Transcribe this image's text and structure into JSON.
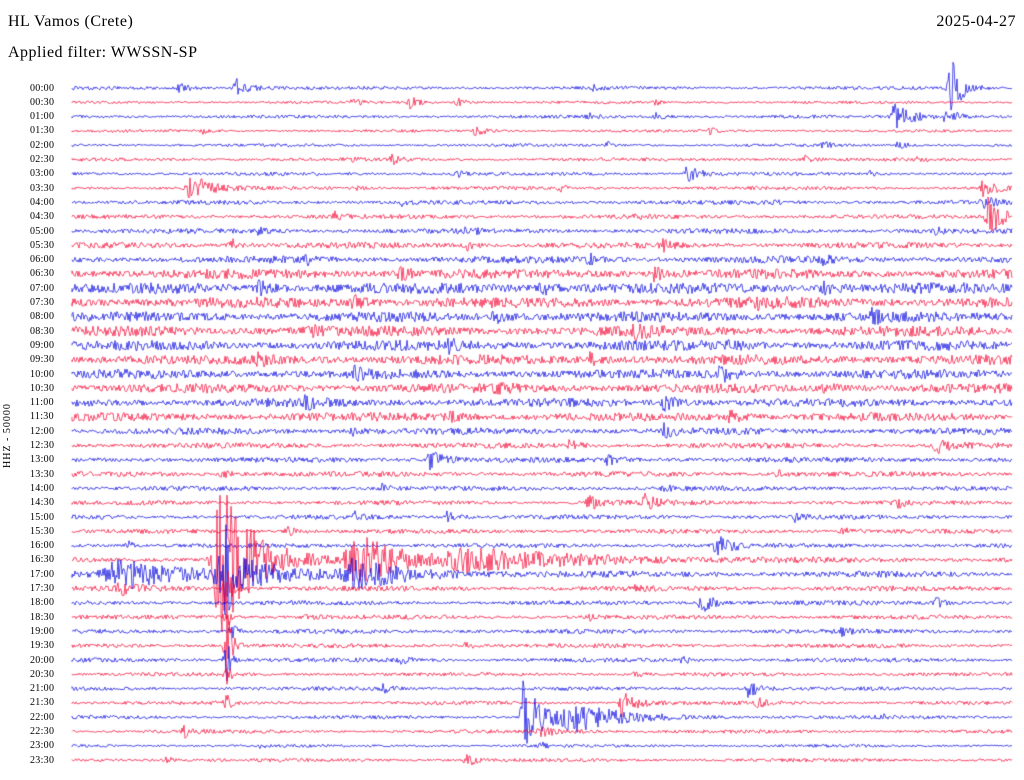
{
  "header": {
    "station": "HL Vamos (Crete)",
    "date": "2025-04-27",
    "filter_label": "Applied filter: WWSSN-SP",
    "channel_scale": "HHZ - 50000"
  },
  "colors": {
    "blue": "#0000e0",
    "red": "#f40030",
    "background": "#ffffff",
    "text": "#000000"
  },
  "chart_data": {
    "type": "seismogram",
    "title": "HL Vamos (Crete)",
    "date": "2025-04-27",
    "filter": "WWSSN-SP",
    "channel_scale": "HHZ - 50000",
    "minutes_per_line": 30,
    "legend_position": "none",
    "grid": false,
    "note": "Helicorder drum plot, 48 half-hour traces alternating blue/red. events = [x_fraction_of_line, amplitude_px, decay_px].",
    "rows": [
      {
        "time": "00:00",
        "color": "blue",
        "noise": 1.8,
        "events": [
          [
            0.115,
            5,
            10
          ],
          [
            0.175,
            9,
            14
          ],
          [
            0.555,
            3,
            6
          ],
          [
            0.935,
            34,
            10
          ]
        ]
      },
      {
        "time": "00:30",
        "color": "red",
        "noise": 1.5,
        "events": [
          [
            0.3,
            4,
            7
          ],
          [
            0.36,
            6,
            8
          ],
          [
            0.41,
            5,
            8
          ],
          [
            0.62,
            3,
            6
          ]
        ]
      },
      {
        "time": "01:00",
        "color": "blue",
        "noise": 1.8,
        "events": [
          [
            0.55,
            3,
            6
          ],
          [
            0.62,
            4,
            8
          ],
          [
            0.875,
            13,
            18
          ],
          [
            0.93,
            9,
            10
          ]
        ]
      },
      {
        "time": "01:30",
        "color": "red",
        "noise": 1.5,
        "events": [
          [
            0.14,
            3,
            5
          ],
          [
            0.43,
            6,
            8
          ],
          [
            0.68,
            4,
            6
          ]
        ]
      },
      {
        "time": "02:00",
        "color": "blue",
        "noise": 1.6,
        "events": [
          [
            0.57,
            3,
            5
          ],
          [
            0.8,
            4,
            6
          ],
          [
            0.88,
            5,
            8
          ]
        ]
      },
      {
        "time": "02:30",
        "color": "red",
        "noise": 1.9,
        "events": [
          [
            0.29,
            5,
            7
          ],
          [
            0.34,
            6,
            8
          ],
          [
            0.78,
            4,
            6
          ],
          [
            0.9,
            3,
            5
          ]
        ]
      },
      {
        "time": "03:00",
        "color": "blue",
        "noise": 1.9,
        "events": [
          [
            0.41,
            4,
            6
          ],
          [
            0.655,
            9,
            12
          ],
          [
            0.85,
            3,
            5
          ]
        ]
      },
      {
        "time": "03:30",
        "color": "red",
        "noise": 2.0,
        "events": [
          [
            0.125,
            17,
            16
          ],
          [
            0.3,
            4,
            6
          ],
          [
            0.52,
            3,
            5
          ],
          [
            0.97,
            9,
            12
          ]
        ]
      },
      {
        "time": "04:00",
        "color": "blue",
        "noise": 2.3,
        "events": [
          [
            0.35,
            4,
            6
          ],
          [
            0.75,
            3,
            5
          ],
          [
            0.97,
            6,
            10
          ]
        ]
      },
      {
        "time": "04:30",
        "color": "red",
        "noise": 2.3,
        "events": [
          [
            0.28,
            5,
            8
          ],
          [
            0.6,
            4,
            6
          ],
          [
            0.975,
            21,
            14
          ]
        ]
      },
      {
        "time": "05:00",
        "color": "blue",
        "noise": 2.8,
        "events": [
          [
            0.2,
            4,
            6
          ],
          [
            0.42,
            5,
            8
          ],
          [
            0.92,
            4,
            6
          ]
        ]
      },
      {
        "time": "05:30",
        "color": "red",
        "noise": 3.2,
        "events": [
          [
            0.17,
            6,
            8
          ],
          [
            0.42,
            6,
            8
          ],
          [
            0.63,
            5,
            8
          ]
        ]
      },
      {
        "time": "06:00",
        "color": "blue",
        "noise": 3.8,
        "events": [
          [
            0.25,
            5,
            8
          ],
          [
            0.55,
            5,
            8
          ],
          [
            0.8,
            4,
            6
          ]
        ]
      },
      {
        "time": "06:30",
        "color": "red",
        "noise": 5.2,
        "events": [
          [
            0.35,
            6,
            10
          ],
          [
            0.62,
            6,
            10
          ]
        ]
      },
      {
        "time": "07:00",
        "color": "blue",
        "noise": 5.8,
        "events": [
          [
            0.2,
            6,
            10
          ],
          [
            0.5,
            6,
            10
          ],
          [
            0.8,
            6,
            10
          ]
        ]
      },
      {
        "time": "07:30",
        "color": "red",
        "noise": 5.8,
        "events": [
          [
            0.3,
            6,
            10
          ],
          [
            0.73,
            8,
            10
          ]
        ]
      },
      {
        "time": "08:00",
        "color": "blue",
        "noise": 5.4,
        "events": [
          [
            0.45,
            6,
            10
          ],
          [
            0.85,
            6,
            10
          ]
        ]
      },
      {
        "time": "08:30",
        "color": "red",
        "noise": 5.4,
        "events": [
          [
            0.25,
            6,
            10
          ],
          [
            0.6,
            6,
            10
          ]
        ]
      },
      {
        "time": "09:00",
        "color": "blue",
        "noise": 5.4,
        "events": [
          [
            0.4,
            6,
            10
          ],
          [
            0.7,
            6,
            10
          ]
        ]
      },
      {
        "time": "09:30",
        "color": "red",
        "noise": 5.4,
        "events": [
          [
            0.2,
            6,
            10
          ],
          [
            0.55,
            6,
            10
          ]
        ]
      },
      {
        "time": "10:00",
        "color": "blue",
        "noise": 5.0,
        "events": [
          [
            0.69,
            9,
            10
          ],
          [
            0.3,
            6,
            10
          ]
        ]
      },
      {
        "time": "10:30",
        "color": "red",
        "noise": 5.0,
        "events": [
          [
            0.45,
            6,
            10
          ],
          [
            0.8,
            6,
            10
          ]
        ]
      },
      {
        "time": "11:00",
        "color": "blue",
        "noise": 4.6,
        "events": [
          [
            0.63,
            8,
            10
          ],
          [
            0.25,
            6,
            10
          ]
        ]
      },
      {
        "time": "11:30",
        "color": "red",
        "noise": 4.6,
        "events": [
          [
            0.4,
            6,
            10
          ],
          [
            0.7,
            6,
            10
          ]
        ]
      },
      {
        "time": "12:00",
        "color": "blue",
        "noise": 3.6,
        "events": [
          [
            0.63,
            6,
            8
          ],
          [
            0.3,
            4,
            6
          ]
        ]
      },
      {
        "time": "12:30",
        "color": "red",
        "noise": 2.9,
        "events": [
          [
            0.53,
            5,
            8
          ],
          [
            0.92,
            8,
            14
          ]
        ]
      },
      {
        "time": "13:00",
        "color": "blue",
        "noise": 2.9,
        "events": [
          [
            0.38,
            10,
            14
          ],
          [
            0.57,
            5,
            8
          ]
        ]
      },
      {
        "time": "13:30",
        "color": "red",
        "noise": 2.8,
        "events": [
          [
            0.16,
            5,
            8
          ],
          [
            0.75,
            4,
            6
          ]
        ]
      },
      {
        "time": "14:00",
        "color": "blue",
        "noise": 2.5,
        "events": [
          [
            0.33,
            4,
            6
          ],
          [
            0.63,
            5,
            8
          ]
        ]
      },
      {
        "time": "14:30",
        "color": "red",
        "noise": 2.5,
        "events": [
          [
            0.55,
            9,
            10
          ],
          [
            0.61,
            8,
            10
          ],
          [
            0.88,
            4,
            6
          ]
        ]
      },
      {
        "time": "15:00",
        "color": "blue",
        "noise": 2.5,
        "events": [
          [
            0.3,
            5,
            8
          ],
          [
            0.4,
            6,
            8
          ],
          [
            0.77,
            4,
            6
          ]
        ]
      },
      {
        "time": "15:30",
        "color": "red",
        "noise": 2.4,
        "events": [
          [
            0.23,
            5,
            8
          ],
          [
            0.82,
            5,
            8
          ]
        ]
      },
      {
        "time": "16:00",
        "color": "blue",
        "noise": 2.4,
        "events": [
          [
            0.06,
            4,
            6
          ],
          [
            0.685,
            12,
            14
          ]
        ]
      },
      {
        "time": "16:30",
        "color": "red",
        "noise": 2.8,
        "events": [
          [
            0.155,
            92,
            30
          ],
          [
            0.3,
            28,
            45
          ],
          [
            0.42,
            10,
            110
          ]
        ]
      },
      {
        "time": "17:00",
        "color": "blue",
        "noise": 3.4,
        "events": [
          [
            0.05,
            14,
            70
          ],
          [
            0.16,
            22,
            40
          ],
          [
            0.165,
            40,
            3
          ],
          [
            0.3,
            12,
            60
          ]
        ]
      },
      {
        "time": "17:30",
        "color": "red",
        "noise": 2.8,
        "events": [
          [
            0.165,
            30,
            4
          ],
          [
            0.6,
            4,
            6
          ],
          [
            0.05,
            6,
            20
          ]
        ]
      },
      {
        "time": "18:00",
        "color": "blue",
        "noise": 2.4,
        "events": [
          [
            0.67,
            10,
            12
          ],
          [
            0.92,
            5,
            8
          ]
        ]
      },
      {
        "time": "18:30",
        "color": "red",
        "noise": 2.4,
        "events": [
          [
            0.165,
            12,
            4
          ],
          [
            0.25,
            4,
            6
          ],
          [
            0.55,
            3,
            5
          ]
        ]
      },
      {
        "time": "19:00",
        "color": "blue",
        "noise": 2.4,
        "events": [
          [
            0.17,
            8,
            5
          ],
          [
            0.82,
            4,
            6
          ]
        ]
      },
      {
        "time": "19:30",
        "color": "red",
        "noise": 2.3,
        "events": [
          [
            0.165,
            36,
            5
          ],
          [
            0.42,
            4,
            6
          ]
        ]
      },
      {
        "time": "20:00",
        "color": "blue",
        "noise": 2.3,
        "events": [
          [
            0.165,
            20,
            4
          ],
          [
            0.35,
            5,
            8
          ],
          [
            0.65,
            4,
            6
          ]
        ]
      },
      {
        "time": "20:30",
        "color": "red",
        "noise": 2.0,
        "events": [
          [
            0.165,
            10,
            4
          ],
          [
            0.6,
            4,
            6
          ]
        ]
      },
      {
        "time": "21:00",
        "color": "blue",
        "noise": 2.0,
        "events": [
          [
            0.33,
            5,
            8
          ],
          [
            0.72,
            9,
            10
          ]
        ]
      },
      {
        "time": "21:30",
        "color": "red",
        "noise": 2.0,
        "events": [
          [
            0.165,
            8,
            4
          ],
          [
            0.585,
            13,
            14
          ],
          [
            0.73,
            5,
            8
          ]
        ]
      },
      {
        "time": "22:00",
        "color": "blue",
        "noise": 2.0,
        "events": [
          [
            0.48,
            36,
            18
          ],
          [
            0.53,
            14,
            45
          ],
          [
            0.86,
            4,
            6
          ]
        ]
      },
      {
        "time": "22:30",
        "color": "red",
        "noise": 1.9,
        "events": [
          [
            0.12,
            6,
            8
          ],
          [
            0.5,
            4,
            25
          ]
        ]
      },
      {
        "time": "23:00",
        "color": "blue",
        "noise": 1.6,
        "events": [
          [
            0.2,
            3,
            5
          ],
          [
            0.5,
            3,
            5
          ]
        ]
      },
      {
        "time": "23:30",
        "color": "red",
        "noise": 1.9,
        "events": [
          [
            0.1,
            4,
            6
          ],
          [
            0.42,
            7,
            8
          ]
        ]
      }
    ]
  }
}
